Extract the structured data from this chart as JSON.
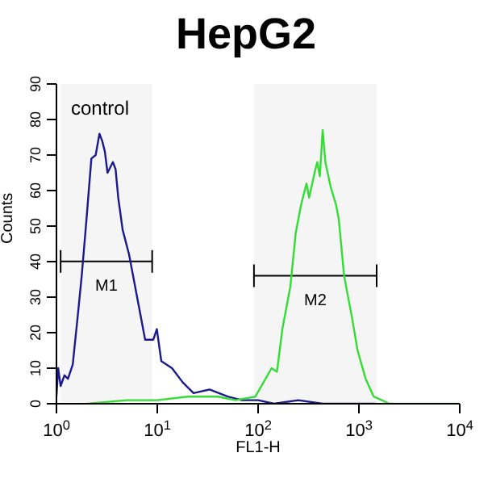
{
  "chart_data": {
    "type": "line",
    "title": "HepG2",
    "xlabel": "FL1-H",
    "ylabel": "Counts",
    "log": "x",
    "xlim": [
      1,
      10000
    ],
    "xticks": [
      {
        "value": 1,
        "label": "10$^{0}$"
      },
      {
        "value": 10,
        "label": "10$^{1}$"
      },
      {
        "value": 100,
        "label": "10$^{2}$"
      },
      {
        "value": 1000,
        "label": "10$^{3}$"
      },
      {
        "value": 10000,
        "label": "10$^{4}$"
      }
    ],
    "ylim": [
      0,
      90
    ],
    "yticks": [
      0,
      10,
      20,
      30,
      40,
      50,
      60,
      70,
      80,
      90
    ],
    "grid": false,
    "legend": false,
    "marker": "none",
    "line_style": "solid",
    "annotations": [
      "control"
    ],
    "bands": [
      {
        "axis": "x",
        "from": 1.1,
        "to": 8.9,
        "label": "M1",
        "color": "#000000"
      },
      {
        "axis": "x",
        "from": 91,
        "to": 1500,
        "label": "M2",
        "color": "#000000"
      }
    ],
    "series": [
      {
        "color": "#1a1a8c",
        "x": [
          1.0,
          1.04,
          1.1,
          1.2,
          1.3,
          1.45,
          1.63,
          1.78,
          1.96,
          2.22,
          2.45,
          2.67,
          2.84,
          3.02,
          3.21,
          3.63,
          3.86,
          4.1,
          4.53,
          5.25,
          6.31,
          7.58,
          9.12,
          9.9,
          10.96,
          14,
          17.9,
          22.9,
          33,
          50,
          69,
          100,
          144,
          250,
          437,
          1000,
          1500
        ],
        "values": [
          2,
          10,
          5,
          8,
          7,
          11,
          25,
          36,
          50,
          69,
          70,
          76,
          74,
          71,
          65,
          68,
          66,
          58,
          49,
          42,
          30,
          18,
          18,
          21,
          12,
          10,
          6,
          3,
          4,
          2,
          1,
          1,
          0,
          1,
          0,
          0,
          0
        ]
      },
      {
        "color": "#33dd33",
        "x": [
          2,
          5,
          10,
          20,
          40,
          60,
          94,
          113,
          136,
          154,
          174,
          209,
          236,
          267,
          302,
          321,
          363,
          386,
          410,
          437,
          465,
          525,
          593,
          631,
          713,
          857,
          970,
          1167,
          1403,
          1687,
          2000,
          10000
        ],
        "values": [
          0,
          1,
          1,
          2,
          2,
          1,
          2,
          6,
          10,
          9,
          21,
          33,
          48,
          56,
          62,
          58,
          65,
          68,
          64,
          77,
          68,
          61,
          56,
          52,
          36,
          24,
          15,
          7,
          2,
          1,
          0,
          0
        ]
      }
    ]
  }
}
